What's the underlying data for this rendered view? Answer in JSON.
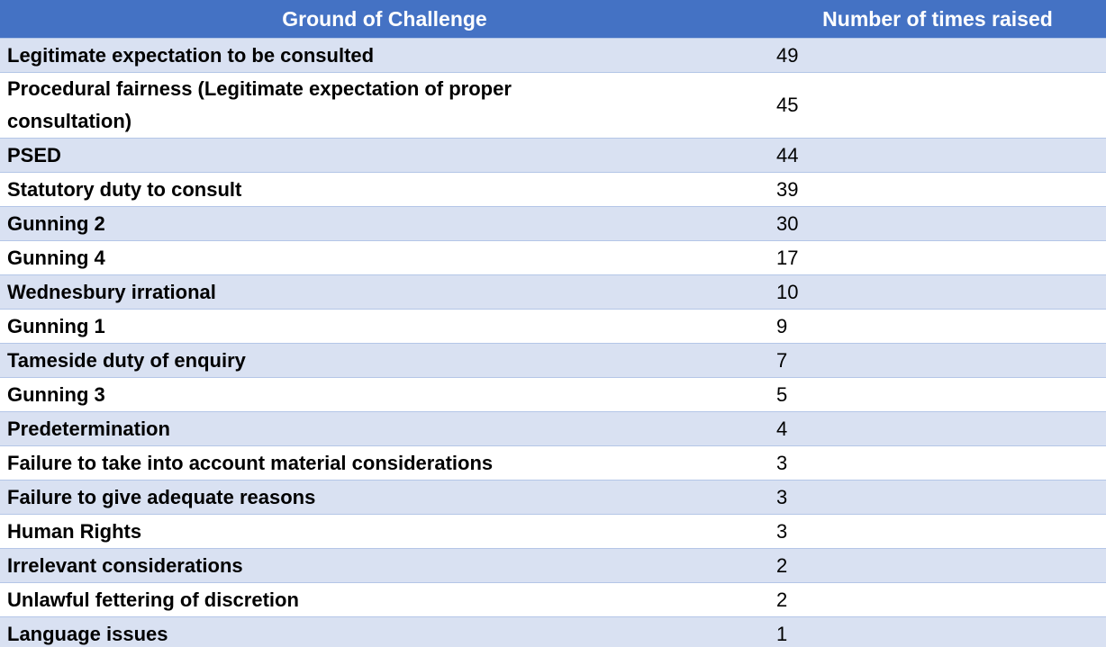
{
  "table": {
    "columns": [
      "Ground of Challenge",
      "Number of times raised"
    ],
    "rows": [
      [
        "Legitimate expectation to be consulted",
        49
      ],
      [
        "Procedural fairness (Legitimate expectation of proper consultation)",
        45
      ],
      [
        "PSED",
        44
      ],
      [
        "Statutory duty to consult",
        39
      ],
      [
        "Gunning 2",
        30
      ],
      [
        "Gunning 4",
        17
      ],
      [
        "Wednesbury irrational",
        10
      ],
      [
        "Gunning 1",
        9
      ],
      [
        "Tameside duty of enquiry",
        7
      ],
      [
        "Gunning 3",
        5
      ],
      [
        "Predetermination",
        4
      ],
      [
        "Failure to take into account material considerations",
        3
      ],
      [
        "Failure to give adequate reasons",
        3
      ],
      [
        "Human Rights",
        3
      ],
      [
        "Irrelevant considerations",
        2
      ],
      [
        "Unlawful fettering of discretion",
        2
      ],
      [
        "Language issues",
        1
      ]
    ]
  }
}
